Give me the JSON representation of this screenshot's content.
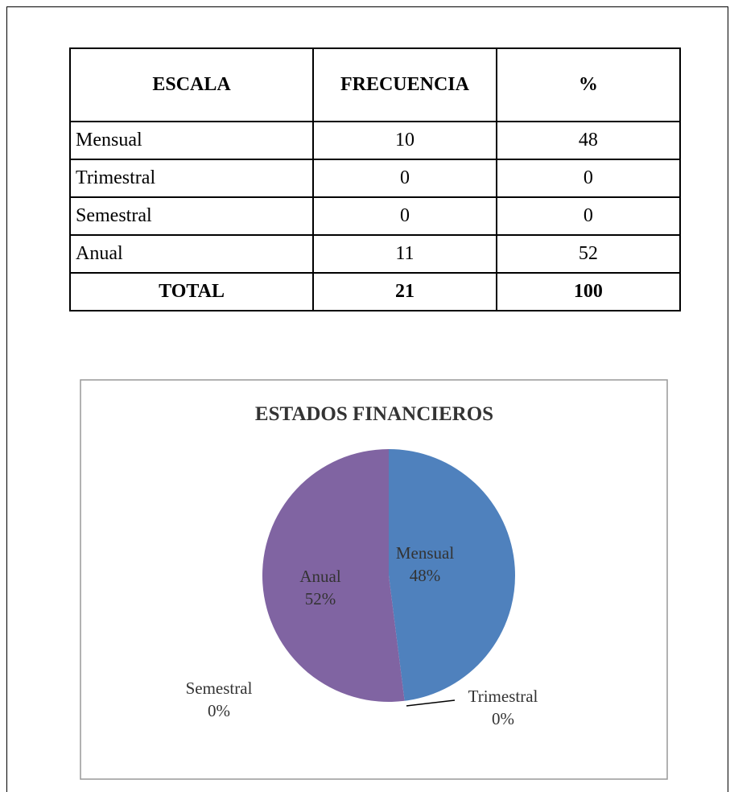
{
  "table": {
    "header": [
      "ESCALA",
      "FRECUENCIA",
      "%"
    ],
    "rows": [
      [
        "Mensual",
        10,
        48
      ],
      [
        "Trimestral",
        0,
        0
      ],
      [
        "Semestral",
        0,
        0
      ],
      [
        "Anual",
        11,
        52
      ]
    ],
    "total": [
      "TOTAL",
      21,
      100
    ]
  },
  "chart_data": {
    "type": "pie",
    "title": "ESTADOS FINANCIEROS",
    "categories": [
      "Mensual",
      "Trimestral",
      "Semestral",
      "Anual"
    ],
    "values": [
      48,
      0,
      0,
      52
    ],
    "value_labels": [
      "48%",
      "0%",
      "0%",
      "52%"
    ],
    "colors": [
      "#4f81bd",
      "#c0504d",
      "#9bbb59",
      "#8064a2"
    ]
  }
}
